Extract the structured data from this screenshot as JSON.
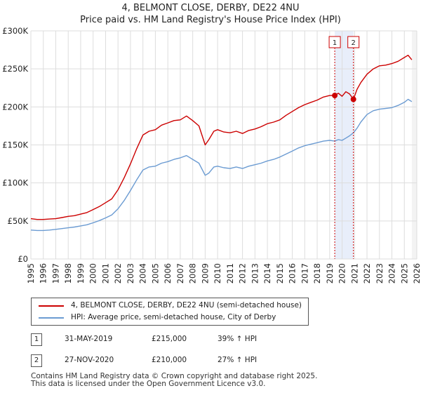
{
  "title_line1": "4, BELMONT CLOSE, DERBY, DE22 4NU",
  "title_line2": "Price paid vs. HM Land Registry's House Price Index (HPI)",
  "chart_data": {
    "type": "line",
    "xlim": [
      1995,
      2026
    ],
    "ylim": [
      0,
      300000
    ],
    "y_ticks": [
      0,
      50000,
      100000,
      150000,
      200000,
      250000,
      300000
    ],
    "y_tick_labels": [
      "£0",
      "£50K",
      "£100K",
      "£150K",
      "£200K",
      "£250K",
      "£300K"
    ],
    "x_ticks": [
      1995,
      1996,
      1997,
      1998,
      1999,
      2000,
      2001,
      2002,
      2003,
      2004,
      2005,
      2006,
      2007,
      2008,
      2009,
      2010,
      2011,
      2012,
      2013,
      2014,
      2015,
      2016,
      2017,
      2018,
      2019,
      2020,
      2021,
      2022,
      2023,
      2024,
      2025,
      2026
    ],
    "grid": true,
    "series": [
      {
        "name": "4, BELMONT CLOSE, DERBY, DE22 4NU (semi-detached house)",
        "color": "#cc0000",
        "x": [
          1995.0,
          1995.5,
          1996.0,
          1996.5,
          1997.0,
          1997.5,
          1998.0,
          1998.5,
          1999.0,
          1999.5,
          2000.0,
          2000.5,
          2001.0,
          2001.5,
          2002.0,
          2002.5,
          2003.0,
          2003.5,
          2004.0,
          2004.5,
          2005.0,
          2005.5,
          2006.0,
          2006.5,
          2007.0,
          2007.5,
          2008.0,
          2008.5,
          2009.0,
          2009.3,
          2009.7,
          2010.0,
          2010.5,
          2011.0,
          2011.5,
          2012.0,
          2012.5,
          2013.0,
          2013.5,
          2014.0,
          2014.5,
          2015.0,
          2015.5,
          2016.0,
          2016.5,
          2017.0,
          2017.5,
          2018.0,
          2018.5,
          2019.0,
          2019.41,
          2019.7,
          2020.0,
          2020.3,
          2020.6,
          2020.91,
          2021.2,
          2021.5,
          2022.0,
          2022.5,
          2023.0,
          2023.5,
          2024.0,
          2024.5,
          2025.0,
          2025.3,
          2025.6
        ],
        "values": [
          53000,
          52000,
          52000,
          52500,
          53000,
          54500,
          56000,
          57000,
          59000,
          61000,
          65000,
          69000,
          74000,
          79000,
          91000,
          107000,
          125000,
          145000,
          163000,
          168000,
          170000,
          176000,
          179000,
          182000,
          183000,
          188000,
          182000,
          175000,
          150000,
          157000,
          168000,
          170000,
          167000,
          166000,
          168000,
          165000,
          169000,
          171000,
          174000,
          178000,
          180000,
          183000,
          189000,
          194000,
          199000,
          203000,
          206000,
          209000,
          213000,
          215000,
          215000,
          218000,
          214000,
          220000,
          217000,
          210000,
          223000,
          232000,
          243000,
          250000,
          254000,
          255000,
          257000,
          260000,
          265000,
          268000,
          262000
        ]
      },
      {
        "name": "HPI: Average price, semi-detached house, City of Derby",
        "color": "#6b9bd2",
        "x": [
          1995.0,
          1995.5,
          1996.0,
          1996.5,
          1997.0,
          1997.5,
          1998.0,
          1998.5,
          1999.0,
          1999.5,
          2000.0,
          2000.5,
          2001.0,
          2001.5,
          2002.0,
          2002.5,
          2003.0,
          2003.5,
          2004.0,
          2004.5,
          2005.0,
          2005.5,
          2006.0,
          2006.5,
          2007.0,
          2007.5,
          2008.0,
          2008.5,
          2009.0,
          2009.3,
          2009.7,
          2010.0,
          2010.5,
          2011.0,
          2011.5,
          2012.0,
          2012.5,
          2013.0,
          2013.5,
          2014.0,
          2014.5,
          2015.0,
          2015.5,
          2016.0,
          2016.5,
          2017.0,
          2017.5,
          2018.0,
          2018.5,
          2019.0,
          2019.41,
          2019.7,
          2020.0,
          2020.3,
          2020.6,
          2020.91,
          2021.2,
          2021.5,
          2022.0,
          2022.5,
          2023.0,
          2023.5,
          2024.0,
          2024.5,
          2025.0,
          2025.3,
          2025.6
        ],
        "values": [
          38000,
          37500,
          37500,
          38000,
          39000,
          40000,
          41000,
          42000,
          43500,
          45000,
          47500,
          50500,
          54000,
          58000,
          66000,
          77000,
          90000,
          104000,
          117000,
          121000,
          122000,
          126000,
          128000,
          131000,
          133000,
          136000,
          131000,
          126000,
          110000,
          113000,
          121000,
          122000,
          120000,
          119000,
          121000,
          119000,
          122000,
          124000,
          126000,
          129000,
          131000,
          134000,
          138000,
          142000,
          146000,
          149000,
          151000,
          153000,
          155000,
          156000,
          155000,
          157000,
          156000,
          159000,
          162000,
          166000,
          172000,
          180000,
          190000,
          195000,
          197000,
          198000,
          199000,
          202000,
          206000,
          210000,
          207000
        ]
      }
    ],
    "sales": [
      {
        "label": "1",
        "x": 2019.41,
        "value": 215000,
        "date": "31-MAY-2019",
        "price": "£215,000",
        "hpi": "39% ↑ HPI"
      },
      {
        "label": "2",
        "x": 2020.91,
        "value": 210000,
        "date": "27-NOV-2020",
        "price": "£210,000",
        "hpi": "27% ↑ HPI"
      }
    ]
  },
  "legend": {
    "line1": "4, BELMONT CLOSE, DERBY, DE22 4NU (semi-detached house)",
    "line2": "HPI: Average price, semi-detached house, City of Derby"
  },
  "table": [
    {
      "num": "1",
      "date": "31-MAY-2019",
      "price": "£215,000",
      "hpi": "39% ↑ HPI"
    },
    {
      "num": "2",
      "date": "27-NOV-2020",
      "price": "£210,000",
      "hpi": "27% ↑ HPI"
    }
  ],
  "footer": {
    "line1": "Contains HM Land Registry data © Crown copyright and database right 2025.",
    "line2": "This data is licensed under the Open Government Licence v3.0."
  }
}
